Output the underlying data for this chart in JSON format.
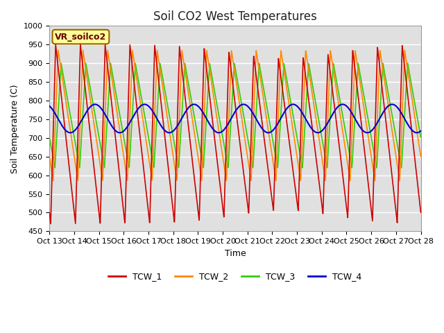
{
  "title": "Soil CO2 West Temperatures",
  "xlabel": "Time",
  "ylabel": "Soil Temperature (C)",
  "ylim": [
    450,
    1000
  ],
  "yticks": [
    450,
    500,
    550,
    600,
    650,
    700,
    750,
    800,
    850,
    900,
    950,
    1000
  ],
  "xtick_labels": [
    "Oct 13",
    "Oct 14",
    "Oct 15",
    "Oct 16",
    "Oct 17",
    "Oct 18",
    "Oct 19",
    "Oct 20",
    "Oct 21",
    "Oct 22",
    "Oct 23",
    "Oct 24",
    "Oct 25",
    "Oct 26",
    "Oct 27",
    "Oct 28"
  ],
  "label_box_text": "VR_soilco2",
  "label_box_bg": "#ffff99",
  "label_box_edge": "#996600",
  "colors": {
    "TCW_1": "#cc0000",
    "TCW_2": "#ff8800",
    "TCW_3": "#33cc00",
    "TCW_4": "#0000cc"
  },
  "bg_color": "#e0e0e0",
  "fig_color": "#ffffff",
  "grid_color": "#ffffff",
  "title_fontsize": 12
}
